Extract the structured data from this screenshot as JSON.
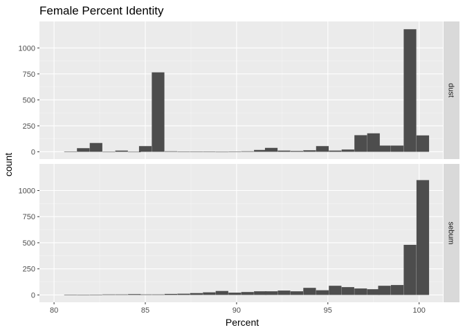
{
  "chart_data": {
    "type": "bar",
    "title": "Female Percent Identity",
    "xlabel": "Percent",
    "ylabel": "count",
    "xlim": [
      79.2,
      101.3
    ],
    "x_ticks": [
      80,
      85,
      90,
      95,
      100
    ],
    "y_ticks": [
      0,
      250,
      500,
      750,
      1000
    ],
    "ylim": [
      -70,
      1255
    ],
    "grid": true,
    "facet_layout": "rows",
    "bin_width": 0.69,
    "panels": [
      {
        "name": "dust",
        "bins": [
          {
            "x": 80.9,
            "count": 3
          },
          {
            "x": 81.6,
            "count": 35
          },
          {
            "x": 82.3,
            "count": 85
          },
          {
            "x": 83.0,
            "count": 0
          },
          {
            "x": 83.7,
            "count": 12
          },
          {
            "x": 84.4,
            "count": 0
          },
          {
            "x": 85.0,
            "count": 55
          },
          {
            "x": 85.7,
            "count": 765
          },
          {
            "x": 86.4,
            "count": 5
          },
          {
            "x": 87.1,
            "count": 3
          },
          {
            "x": 87.8,
            "count": 3
          },
          {
            "x": 88.5,
            "count": 3
          },
          {
            "x": 89.2,
            "count": 0
          },
          {
            "x": 89.9,
            "count": 3
          },
          {
            "x": 90.6,
            "count": 5
          },
          {
            "x": 91.3,
            "count": 18
          },
          {
            "x": 91.9,
            "count": 38
          },
          {
            "x": 92.6,
            "count": 12
          },
          {
            "x": 93.3,
            "count": 8
          },
          {
            "x": 94.0,
            "count": 15
          },
          {
            "x": 94.7,
            "count": 55
          },
          {
            "x": 95.4,
            "count": 12
          },
          {
            "x": 96.1,
            "count": 22
          },
          {
            "x": 96.8,
            "count": 160
          },
          {
            "x": 97.5,
            "count": 178
          },
          {
            "x": 98.1,
            "count": 60
          },
          {
            "x": 98.8,
            "count": 60
          },
          {
            "x": 99.5,
            "count": 1180
          },
          {
            "x": 100.2,
            "count": 158
          }
        ]
      },
      {
        "name": "sebum",
        "bins": [
          {
            "x": 80.9,
            "count": 3
          },
          {
            "x": 81.6,
            "count": 0
          },
          {
            "x": 82.3,
            "count": 3
          },
          {
            "x": 83.0,
            "count": 5
          },
          {
            "x": 83.7,
            "count": 5
          },
          {
            "x": 84.4,
            "count": 8
          },
          {
            "x": 85.0,
            "count": 5
          },
          {
            "x": 85.7,
            "count": 5
          },
          {
            "x": 86.4,
            "count": 10
          },
          {
            "x": 87.1,
            "count": 12
          },
          {
            "x": 87.8,
            "count": 18
          },
          {
            "x": 88.5,
            "count": 25
          },
          {
            "x": 89.2,
            "count": 38
          },
          {
            "x": 89.9,
            "count": 22
          },
          {
            "x": 90.6,
            "count": 28
          },
          {
            "x": 91.3,
            "count": 35
          },
          {
            "x": 91.9,
            "count": 35
          },
          {
            "x": 92.6,
            "count": 42
          },
          {
            "x": 93.3,
            "count": 35
          },
          {
            "x": 94.0,
            "count": 68
          },
          {
            "x": 94.7,
            "count": 45
          },
          {
            "x": 95.4,
            "count": 88
          },
          {
            "x": 96.1,
            "count": 75
          },
          {
            "x": 96.8,
            "count": 62
          },
          {
            "x": 97.5,
            "count": 55
          },
          {
            "x": 98.1,
            "count": 88
          },
          {
            "x": 98.8,
            "count": 95
          },
          {
            "x": 99.5,
            "count": 480
          },
          {
            "x": 100.2,
            "count": 1100
          }
        ]
      }
    ],
    "colors": {
      "bar": "#4d4d4d",
      "panel_bg": "#ebebeb",
      "grid_major": "#ffffff",
      "strip_bg": "#d9d9d9",
      "tick_text": "#4d4d4d"
    }
  }
}
